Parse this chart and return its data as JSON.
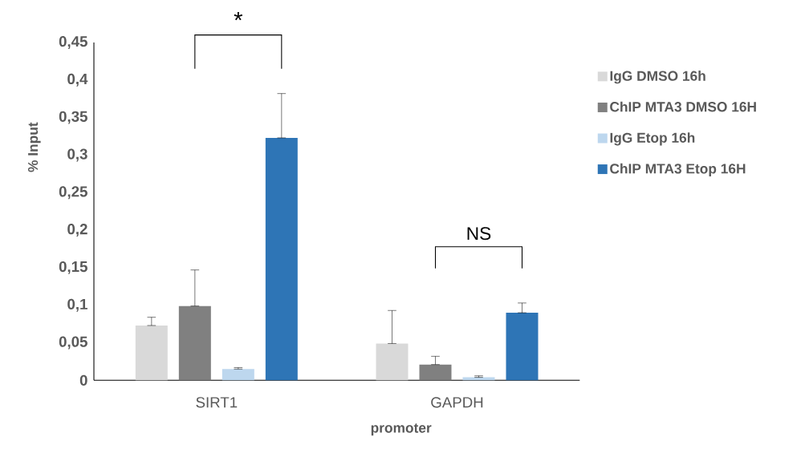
{
  "chart_data": {
    "type": "bar",
    "ylabel": "% Input",
    "xlabel": "promoter",
    "categories": [
      "SIRT1",
      "GAPDH"
    ],
    "series": [
      {
        "name": "IgG DMSO 16h",
        "color": "#d9d9d9",
        "values": [
          0.073,
          0.049
        ],
        "errors": [
          [
            0.073,
            0.084
          ],
          [
            0.049,
            0.093
          ]
        ]
      },
      {
        "name": "ChIP MTA3 DMSO 16H",
        "color": "#808080",
        "values": [
          0.099,
          0.021
        ],
        "errors": [
          [
            0.099,
            0.147
          ],
          [
            0.021,
            0.032
          ]
        ]
      },
      {
        "name": "IgG Etop 16h",
        "color": "#bdd7ee",
        "values": [
          0.015,
          0.004
        ],
        "errors": [
          [
            0.015,
            0.017
          ],
          [
            0.004,
            0.006
          ]
        ]
      },
      {
        "name": "ChIP MTA3 Etop 16H",
        "color": "#2e75b6",
        "values": [
          0.323,
          0.09
        ],
        "errors": [
          [
            0.323,
            0.382
          ],
          [
            0.09,
            0.103
          ]
        ]
      }
    ],
    "ylim": [
      0,
      0.45
    ],
    "yticks": [
      {
        "value": 0,
        "label": "0"
      },
      {
        "value": 0.05,
        "label": "0,05"
      },
      {
        "value": 0.1,
        "label": "0,1"
      },
      {
        "value": 0.15,
        "label": "0,15"
      },
      {
        "value": 0.2,
        "label": "0,2"
      },
      {
        "value": 0.25,
        "label": "0,25"
      },
      {
        "value": 0.3,
        "label": "0,3"
      },
      {
        "value": 0.35,
        "label": "0,35"
      },
      {
        "value": 0.4,
        "label": "0,4"
      },
      {
        "value": 0.45,
        "label": "0,45"
      }
    ],
    "annotations": [
      "*",
      "NS"
    ],
    "legend": "right",
    "grid": false
  }
}
